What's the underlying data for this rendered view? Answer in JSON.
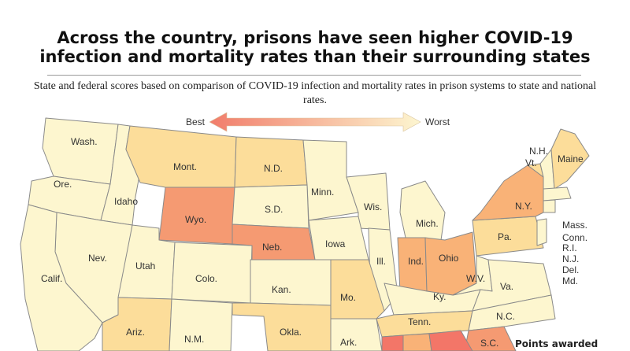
{
  "title_line1": "Across the country, prisons have seen higher COVID-19",
  "title_line2": "infection and mortality rates than their surrounding states",
  "subtitle": "State and federal scores based on comparison of COVID-19 infection and mortality rates in prison systems to state and national rates.",
  "legend": {
    "best": "Best",
    "worst": "Worst",
    "best_color": "#f17c6a",
    "worst_color": "#fdf6d0"
  },
  "points_label": "Points awarded",
  "colors": {
    "light": "#fdf6cf",
    "tan": "#fcdd9a",
    "orange": "#f9b277",
    "dark_orange": "#f59a72",
    "red": "#f37668",
    "border": "#8a8a8a"
  },
  "states": {
    "wash": "Wash.",
    "ore": "Ore.",
    "idaho": "Idaho",
    "mont": "Mont.",
    "nd": "N.D.",
    "minn": "Minn.",
    "wyo": "Wyo.",
    "sd": "S.D.",
    "wis": "Wis.",
    "mich": "Mich.",
    "nev": "Nev.",
    "utah": "Utah",
    "calif": "Calif.",
    "colo": "Colo.",
    "neb": "Neb.",
    "iowa": "Iowa",
    "ill": "Ill.",
    "ind": "Ind.",
    "ohio": "Ohio",
    "pa": "Pa.",
    "ny": "N.Y.",
    "maine": "Maine",
    "vt": "Vt.",
    "nh": "N.H.",
    "kan": "Kan.",
    "mo": "Mo.",
    "ky": "Ky.",
    "wv": "W.V.",
    "va": "Va.",
    "ariz": "Ariz.",
    "nm": "N.M.",
    "okla": "Okla.",
    "ark": "Ark.",
    "tenn": "Tenn.",
    "nc": "N.C.",
    "sc": "S.C.",
    "mass": "Mass.",
    "conn": "Conn.",
    "ri": "R.I.",
    "nj": "N.J.",
    "del": "Del.",
    "md": "Md."
  }
}
